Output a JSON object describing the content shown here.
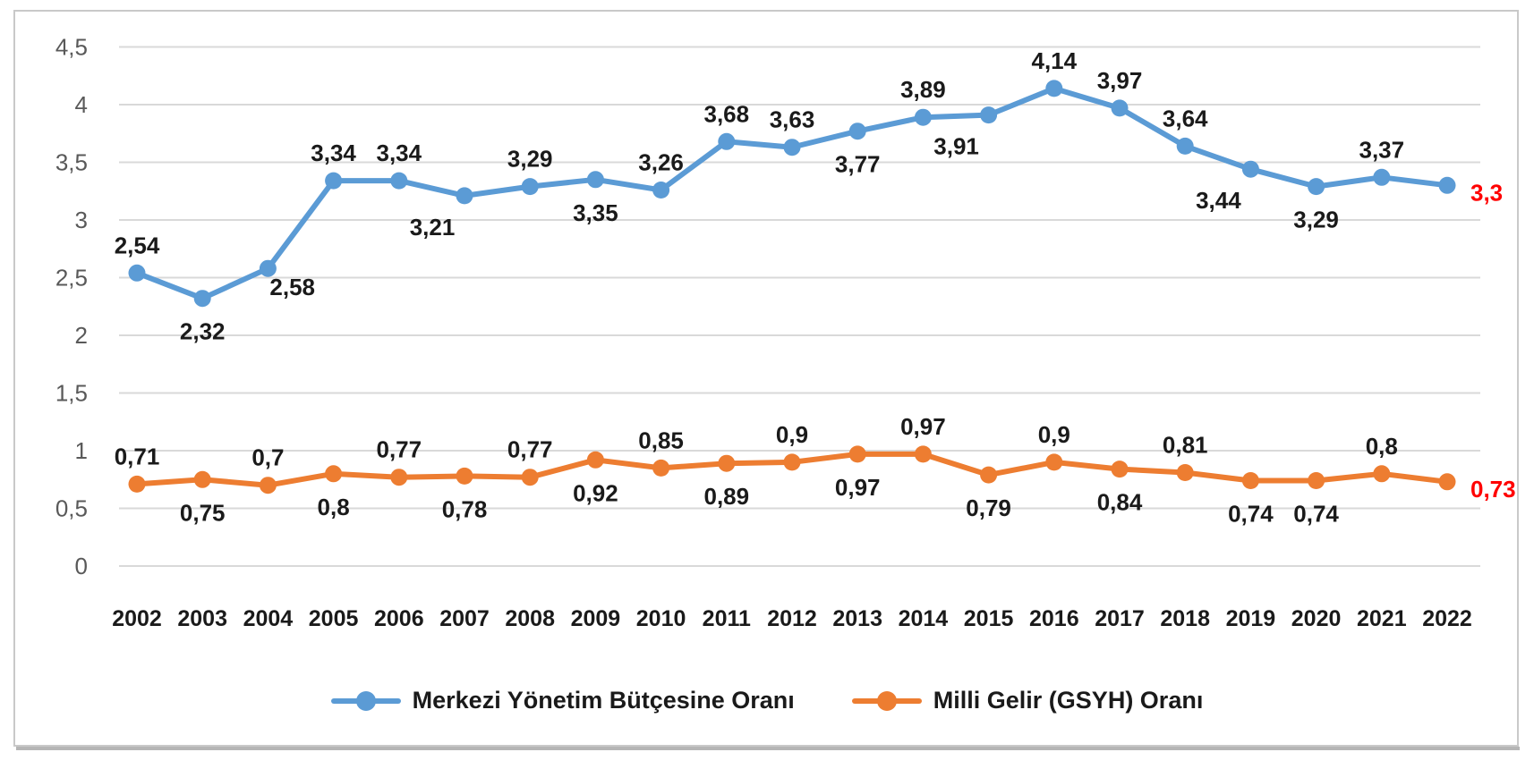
{
  "chart_data": {
    "type": "line",
    "title": "",
    "x_categories": [
      "2002",
      "2003",
      "2004",
      "2005",
      "2006",
      "2007",
      "2008",
      "2009",
      "2010",
      "2011",
      "2012",
      "2013",
      "2014",
      "2015",
      "2016",
      "2017",
      "2018",
      "2019",
      "2020",
      "2021",
      "2022"
    ],
    "y_axis": {
      "min": 0,
      "max": 4.5,
      "step": 0.5,
      "tick_labels": [
        "0",
        "0,5",
        "1",
        "1,5",
        "2",
        "2,5",
        "3",
        "3,5",
        "4",
        "4,5"
      ]
    },
    "grid": true,
    "legend_position": "bottom-center",
    "series": [
      {
        "name": "Merkezi Yönetim Bütçesine Oranı",
        "color": "#5B9BD5",
        "values": [
          2.54,
          2.32,
          2.58,
          3.34,
          3.34,
          3.21,
          3.29,
          3.35,
          3.26,
          3.68,
          3.63,
          3.77,
          3.89,
          3.91,
          4.14,
          3.97,
          3.64,
          3.44,
          3.29,
          3.37,
          3.3
        ],
        "labels": [
          "2,54",
          "2,32",
          "2,58",
          "3,34",
          "3,34",
          "3,21",
          "3,29",
          "3,35",
          "3,26",
          "3,68",
          "3,63",
          "3,77",
          "3,89",
          "3,91",
          "4,14",
          "3,97",
          "3,64",
          "3,44",
          "3,29",
          "3,37",
          "3,3"
        ],
        "label_positions": [
          "above",
          "below",
          "below-right",
          "above",
          "above",
          "below-left",
          "above",
          "below",
          "above",
          "above",
          "above",
          "below",
          "above",
          "below-left",
          "above",
          "above",
          "above",
          "below-left",
          "below",
          "above",
          "right"
        ],
        "final_label_color": "#FF0000"
      },
      {
        "name": "Milli Gelir (GSYH) Oranı",
        "color": "#ED7D31",
        "values": [
          0.71,
          0.75,
          0.7,
          0.8,
          0.77,
          0.78,
          0.77,
          0.92,
          0.85,
          0.89,
          0.9,
          0.97,
          0.97,
          0.79,
          0.9,
          0.84,
          0.81,
          0.74,
          0.74,
          0.8,
          0.73
        ],
        "labels": [
          "0,71",
          "0,75",
          "0,7",
          "0,8",
          "0,77",
          "0,78",
          "0,77",
          "0,92",
          "0,85",
          "0,89",
          "0,9",
          "0,97",
          "0,97",
          "0,79",
          "0,9",
          "0,84",
          "0,81",
          "0,74",
          "0,74",
          "0,8",
          "0,73"
        ],
        "label_positions": [
          "above",
          "below",
          "above",
          "below",
          "above",
          "below",
          "above",
          "below",
          "above",
          "below",
          "above",
          "below",
          "above",
          "below",
          "above",
          "below",
          "above",
          "below",
          "below",
          "above",
          "right"
        ],
        "final_label_color": "#FF0000"
      }
    ],
    "colors": {
      "grid": "#D9D9D9",
      "axis_text": "#595959",
      "label_text": "#1A1A1A",
      "final_label": "#FF0000",
      "frame_border": "#C9C9C9",
      "frame_shadow": "#B5B5B5",
      "background": "#FFFFFF"
    }
  }
}
